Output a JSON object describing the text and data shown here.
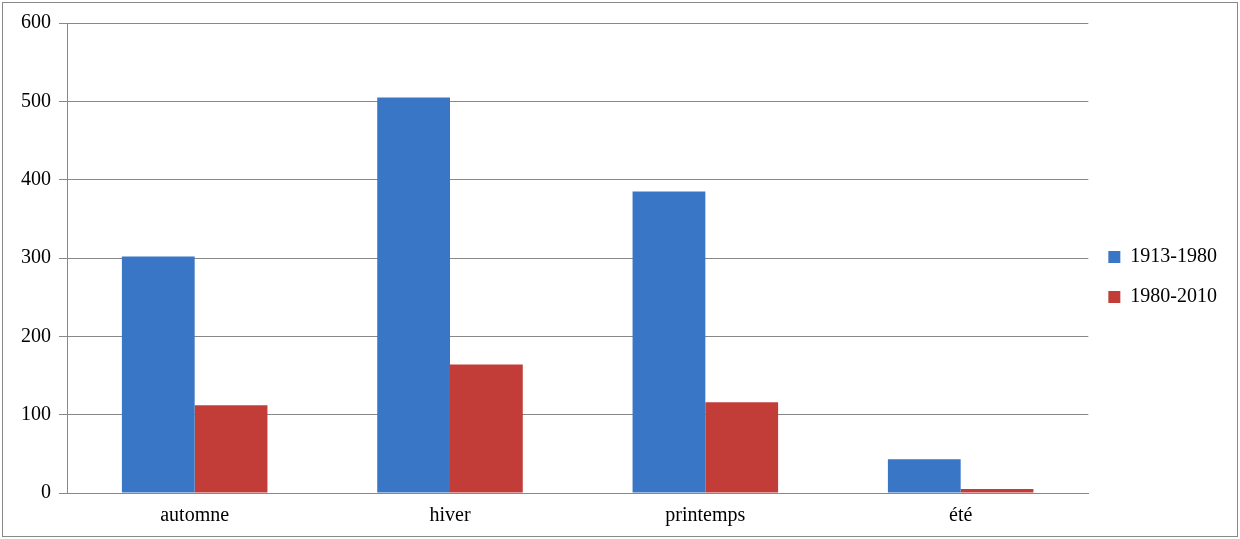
{
  "chart_data": {
    "type": "bar",
    "categories": [
      "automne",
      "hiver",
      "printemps",
      "été"
    ],
    "series": [
      {
        "name": "1913-1980",
        "color": "#3a76c6",
        "values": [
          302,
          505,
          385,
          43
        ]
      },
      {
        "name": "1980-2010",
        "color": "#c23d38",
        "values": [
          112,
          164,
          116,
          5
        ]
      }
    ],
    "ylim": [
      0,
      600
    ],
    "yticks": [
      0,
      100,
      200,
      300,
      400,
      500,
      600
    ],
    "grid": "y",
    "legend": "right"
  }
}
